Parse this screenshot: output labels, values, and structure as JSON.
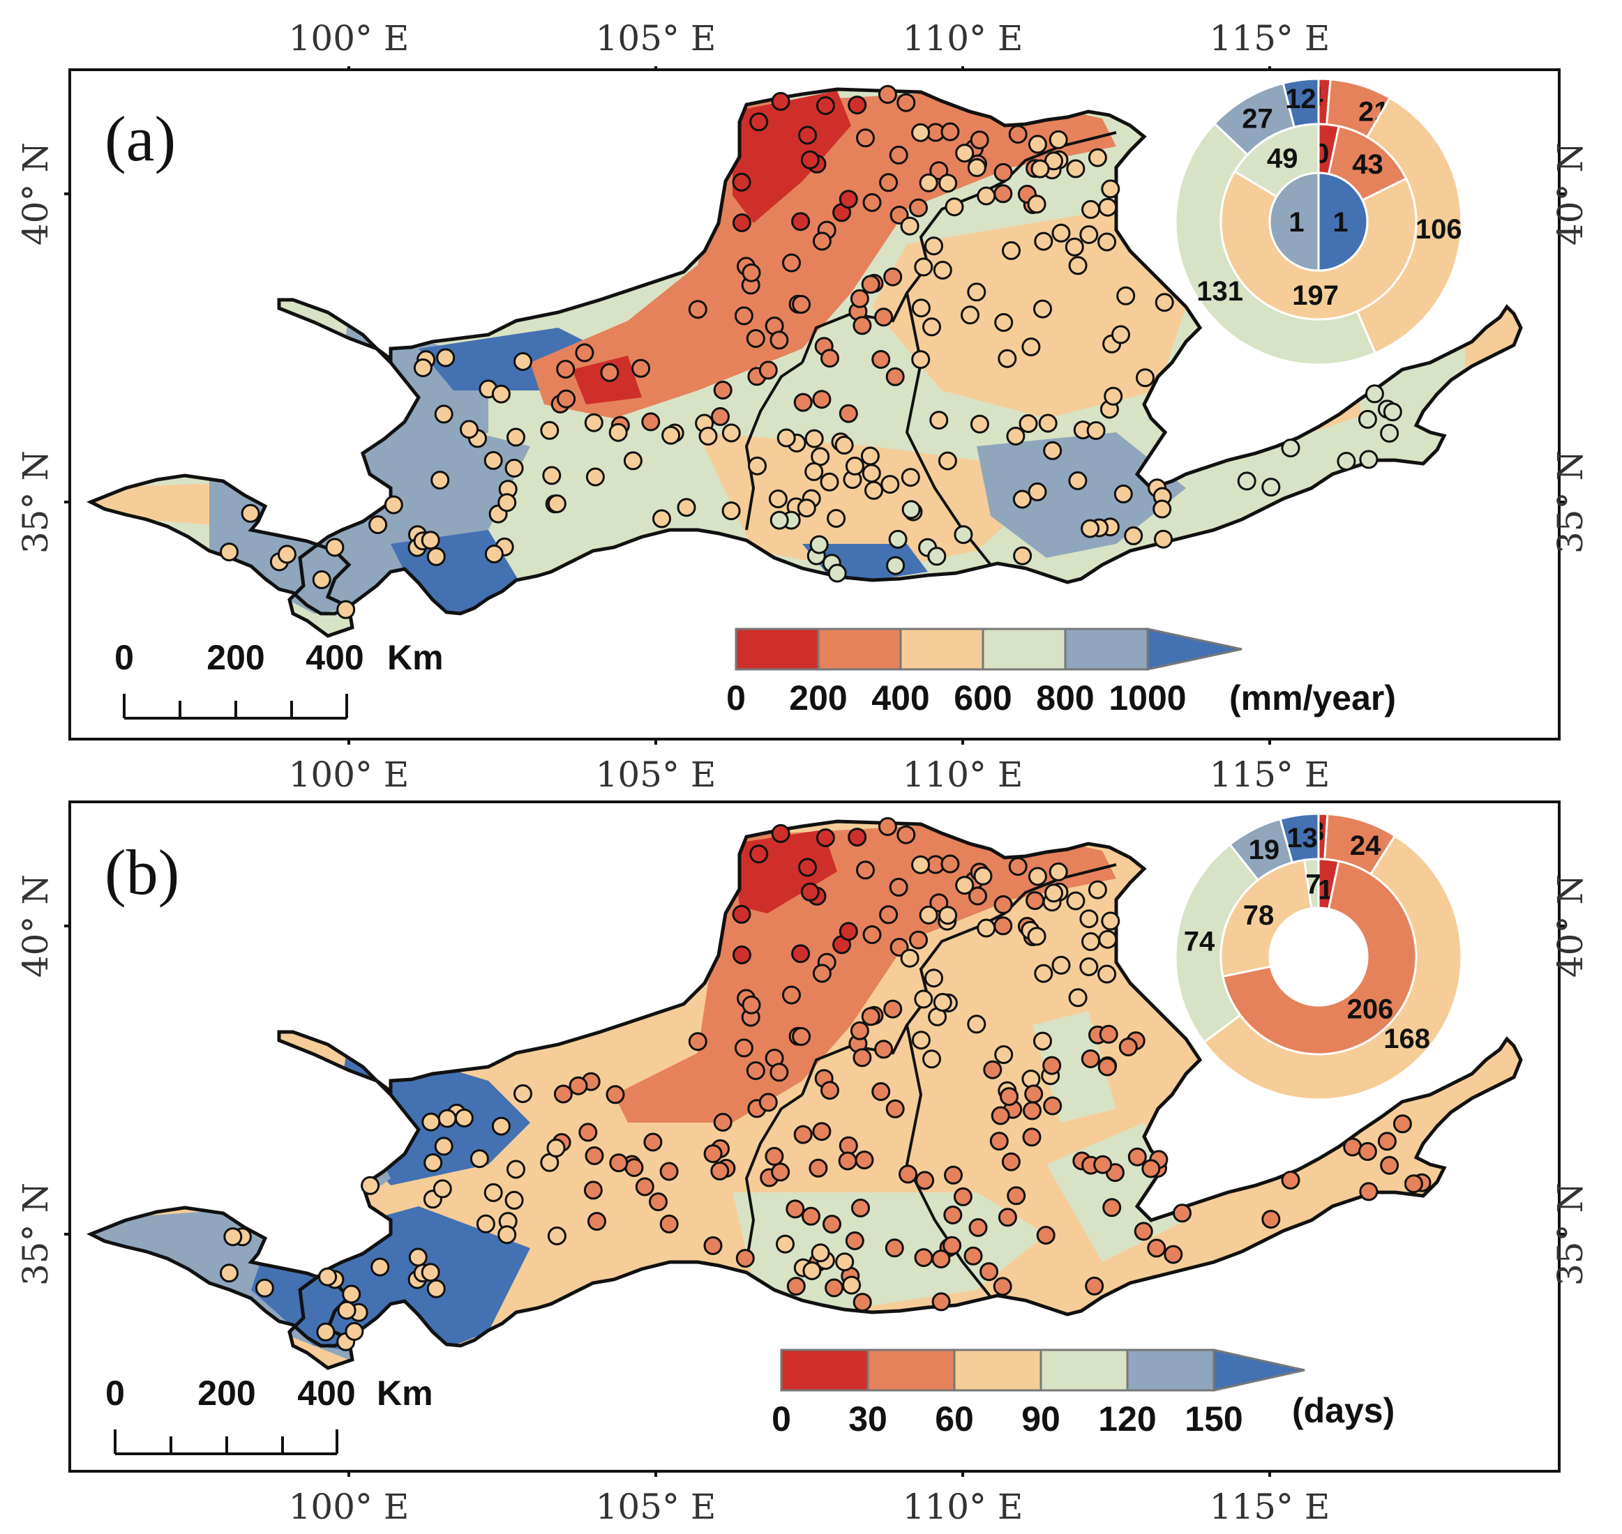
{
  "colors": {
    "c0": "#cf2f2a",
    "c1": "#e5825c",
    "c2": "#f6cd98",
    "c3": "#d8e3c5",
    "c4": "#8fa6bd",
    "c5": "#4471b2",
    "outline": "#111111",
    "frame": "#111111"
  },
  "axes": {
    "lon_labels": [
      "100° E",
      "105° E",
      "110° E",
      "115° E"
    ],
    "lat_labels": [
      "40° N",
      "35° N"
    ]
  },
  "panels": [
    {
      "label": "(a)",
      "scale_bar": {
        "labels": [
          "0",
          "200",
          "400"
        ],
        "unit": "Km"
      },
      "legend": {
        "ticks": [
          "0",
          "200",
          "400",
          "600",
          "800",
          "1000"
        ],
        "unit": "(mm/year)"
      },
      "donut": {
        "outer": [
          {
            "class": 0,
            "label": "4",
            "value": 4
          },
          {
            "class": 1,
            "label": "21",
            "value": 21
          },
          {
            "class": 2,
            "label": "106",
            "value": 106
          },
          {
            "class": 3,
            "label": "131",
            "value": 131
          },
          {
            "class": 4,
            "label": "27",
            "value": 27
          },
          {
            "class": 5,
            "label": "12",
            "value": 12
          }
        ],
        "middle": [
          {
            "class": 0,
            "label": "10",
            "value": 10
          },
          {
            "class": 1,
            "label": "43",
            "value": 43
          },
          {
            "class": 2,
            "label": "197",
            "value": 197
          },
          {
            "class": 3,
            "label": "49",
            "value": 49
          }
        ],
        "inner": [
          {
            "class": 5,
            "label": "1",
            "value": 1
          },
          {
            "class": 4,
            "label": "1",
            "value": 1
          }
        ]
      }
    },
    {
      "label": "(b)",
      "scale_bar": {
        "labels": [
          "0",
          "200",
          "400"
        ],
        "unit": "Km"
      },
      "legend": {
        "ticks": [
          "0",
          "30",
          "60",
          "90",
          "120",
          "150"
        ],
        "unit": "(days)"
      },
      "donut": {
        "outer": [
          {
            "class": 0,
            "label": "3",
            "value": 3
          },
          {
            "class": 1,
            "label": "24",
            "value": 24
          },
          {
            "class": 2,
            "label": "168",
            "value": 168
          },
          {
            "class": 3,
            "label": "74",
            "value": 74
          },
          {
            "class": 4,
            "label": "19",
            "value": 19
          },
          {
            "class": 5,
            "label": "13",
            "value": 13
          }
        ],
        "middle": [
          {
            "class": 0,
            "label": "10",
            "value": 10
          },
          {
            "class": 1,
            "label": "206",
            "value": 206
          },
          {
            "class": 2,
            "label": "78",
            "value": 78
          },
          {
            "class": 3,
            "label": "7",
            "value": 7
          }
        ],
        "inner": []
      }
    }
  ]
}
